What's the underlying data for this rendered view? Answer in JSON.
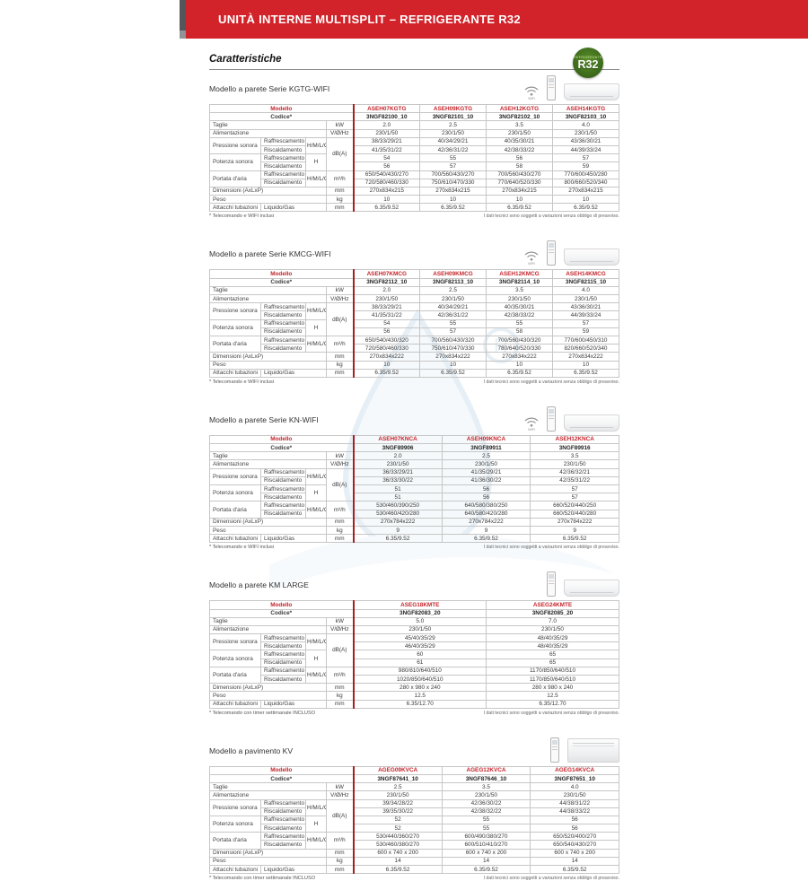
{
  "banner": {
    "title": "UNITÀ INTERNE MULTISPLIT – REFRIGERANTE R32"
  },
  "heading": "Caratteristiche",
  "badge": {
    "small": "REFRIGERANTE",
    "big": "R32"
  },
  "labels": {
    "modello": "Modello",
    "codice": "Codice*",
    "taglie": "Taglie",
    "alimentazione": "Alimentazione",
    "pressione": "Pressione sonora",
    "potenza": "Potenza sonora",
    "portata": "Portata d'aria",
    "raffrescamento": "Raffrescamento",
    "riscaldamento": "Riscaldamento",
    "hmlq": "H/M/L/Q",
    "h": "H",
    "dimensioni": "Dimensioni (AxLxP)",
    "peso": "Peso",
    "attacchi": "Attacchi tubazioni",
    "liquido_gas": "Liquido/Gas",
    "unit_kw": "kW",
    "unit_v": "V/Ø/Hz",
    "unit_dba": "dB(A)",
    "unit_m3h": "m³/h",
    "unit_mm": "mm",
    "unit_kg": "kg",
    "wifi_caption": "WIFI",
    "note_right": "I dati tecnici sono soggetti a variazioni senza obbligo di preavviso."
  },
  "sections": [
    {
      "id": "kgtg-wifi",
      "title": "Modello a parete Serie KGTG-WIFI",
      "icons": [
        "wifi",
        "remote",
        "wall-unit"
      ],
      "footnote": "* Telecomando e WIFI inclusi",
      "models": [
        "ASEH07KGTG",
        "ASEH09KGTG",
        "ASEH12KGTG",
        "ASEH14KGTG"
      ],
      "codes": [
        "3NGF82100_10",
        "3NGF82101_10",
        "3NGF82102_10",
        "3NGF82103_10"
      ],
      "taglie": [
        "2.0",
        "2.5",
        "3.5",
        "4.0"
      ],
      "alimentazione": [
        "230/1/50",
        "230/1/50",
        "230/1/50",
        "230/1/50"
      ],
      "pressione_raff": [
        "38/33/29/21",
        "40/34/29/21",
        "40/35/30/21",
        "43/36/30/21"
      ],
      "pressione_risc": [
        "41/35/31/22",
        "42/36/31/22",
        "42/38/33/22",
        "44/39/33/24"
      ],
      "potenza_raff": [
        "54",
        "55",
        "56",
        "57"
      ],
      "potenza_risc": [
        "56",
        "57",
        "58",
        "59"
      ],
      "portata_raff": [
        "650/540/430/270",
        "700/560/430/270",
        "700/560/430/270",
        "770/600/450/280"
      ],
      "portata_risc": [
        "720/580/460/330",
        "750/610/470/330",
        "770/640/520/330",
        "800/660/520/340"
      ],
      "dimensioni": [
        "270x834x215",
        "270x834x215",
        "270x834x215",
        "270x834x215"
      ],
      "peso": [
        "10",
        "10",
        "10",
        "10"
      ],
      "attacchi": [
        "6.35/9.52",
        "6.35/9.52",
        "6.35/9.52",
        "6.35/9.52"
      ]
    },
    {
      "id": "kmcg-wifi",
      "title": "Modello a parete Serie KMCG-WIFI",
      "icons": [
        "wifi",
        "remote",
        "wall-unit"
      ],
      "footnote": "* Telecomando e WIFI inclusi",
      "models": [
        "ASEH07KMCG",
        "ASEH09KMCG",
        "ASEH12KMCG",
        "ASEH14KMCG"
      ],
      "codes": [
        "3NGF82112_10",
        "3NGF82113_10",
        "3NGF82114_10",
        "3NGF82115_10"
      ],
      "taglie": [
        "2.0",
        "2.5",
        "3.5",
        "4.0"
      ],
      "alimentazione": [
        "230/1/50",
        "230/1/50",
        "230/1/50",
        "230/1/50"
      ],
      "pressione_raff": [
        "38/33/29/21",
        "40/34/29/21",
        "40/35/30/21",
        "43/36/30/21"
      ],
      "pressione_risc": [
        "41/35/31/22",
        "42/36/31/22",
        "42/38/33/22",
        "44/39/33/24"
      ],
      "potenza_raff": [
        "54",
        "55",
        "55",
        "57"
      ],
      "potenza_risc": [
        "56",
        "57",
        "58",
        "59"
      ],
      "portata_raff": [
        "650/540/430/320",
        "700/560/430/320",
        "700/560/430/320",
        "770/600/450/310"
      ],
      "portata_risc": [
        "720/580/460/330",
        "750/610/470/330",
        "780/640/520/330",
        "820/660/520/340"
      ],
      "dimensioni": [
        "270x834x222",
        "270x834x222",
        "270x834x222",
        "270x834x222"
      ],
      "peso": [
        "10",
        "10",
        "10",
        "10"
      ],
      "attacchi": [
        "6.35/9.52",
        "6.35/9.52",
        "6.35/9.52",
        "6.35/9.52"
      ]
    },
    {
      "id": "kn-wifi",
      "title": "Modello a parete Serie KN-WIFI",
      "icons": [
        "wifi",
        "remote",
        "wall-unit"
      ],
      "footnote": "* Telecomando e WIFI inclusi",
      "models": [
        "ASEH07KNCA",
        "ASEH09KNCA",
        "ASEH12KNCA"
      ],
      "codes": [
        "3NGF89906",
        "3NGF89911",
        "3NGF89916"
      ],
      "taglie": [
        "2.0",
        "2.5",
        "3.5"
      ],
      "alimentazione": [
        "230/1/50",
        "230/1/50",
        "230/1/50"
      ],
      "pressione_raff": [
        "36/33/29/21",
        "41/35/29/21",
        "42/36/32/21"
      ],
      "pressione_risc": [
        "36/33/30/22",
        "41/36/30/22",
        "42/35/31/22"
      ],
      "potenza_raff": [
        "51",
        "56",
        "57"
      ],
      "potenza_risc": [
        "51",
        "56",
        "57"
      ],
      "portata_raff": [
        "530/460/390/250",
        "640/580/380/250",
        "660/520/440/250"
      ],
      "portata_risc": [
        "530/460/420/280",
        "640/580/420/280",
        "660/520/440/280"
      ],
      "dimensioni": [
        "270x784x222",
        "270x784x222",
        "270x784x222"
      ],
      "peso": [
        "9",
        "9",
        "9"
      ],
      "attacchi": [
        "6.35/9.52",
        "6.35/9.52",
        "6.35/9.52"
      ]
    },
    {
      "id": "km-large",
      "title": "Modello a parete KM LARGE",
      "icons": [
        "remote",
        "wall-unit"
      ],
      "footnote": "* Telecomando con timer settimanale INCLUSO",
      "models": [
        "ASEG18KMTE",
        "ASEG24KMTE"
      ],
      "codes": [
        "3NGF82083_20",
        "3NGF82085_20"
      ],
      "taglie": [
        "5.0",
        "7.0"
      ],
      "alimentazione": [
        "230/1/50",
        "230/1/50"
      ],
      "pressione_raff": [
        "45/40/35/29",
        "48/40/35/29"
      ],
      "pressione_risc": [
        "46/40/35/29",
        "48/40/35/29"
      ],
      "potenza_raff": [
        "60",
        "65"
      ],
      "potenza_risc": [
        "61",
        "65"
      ],
      "portata_raff": [
        "980/810/640/510",
        "1170/850/640/510"
      ],
      "portata_risc": [
        "1020/850/640/510",
        "1170/850/640/510"
      ],
      "dimensioni": [
        "280 x 980 x 240",
        "280 x 980 x 240"
      ],
      "peso": [
        "12.5",
        "12.5"
      ],
      "attacchi": [
        "6.35/12.70",
        "6.35/12.70"
      ]
    },
    {
      "id": "kv",
      "title": "Modello a pavimento KV",
      "icons": [
        "remote",
        "floor-unit"
      ],
      "footnote": "* Telecomando con timer settimanale INCLUSO",
      "models": [
        "AGEG09KVCA",
        "AGEG12KVCA",
        "AGEG14KVCA"
      ],
      "codes": [
        "3NGF87641_10",
        "3NGF87646_10",
        "3NGF87651_10"
      ],
      "taglie": [
        "2.5",
        "3.5",
        "4.0"
      ],
      "alimentazione": [
        "230/1/50",
        "230/1/50",
        "230/1/50"
      ],
      "pressione_raff": [
        "39/34/28/22",
        "42/36/30/22",
        "44/38/31/22"
      ],
      "pressione_risc": [
        "39/35/30/22",
        "42/38/32/22",
        "44/38/33/22"
      ],
      "potenza_raff": [
        "52",
        "55",
        "56"
      ],
      "potenza_risc": [
        "52",
        "55",
        "56"
      ],
      "portata_raff": [
        "530/440/360/270",
        "600/490/380/270",
        "650/520/400/270"
      ],
      "portata_risc": [
        "530/460/380/270",
        "600/510/410/270",
        "650/540/430/270"
      ],
      "dimensioni": [
        "600 x 740 x 200",
        "600 x 740 x 200",
        "600 x 740 x 200"
      ],
      "peso": [
        "14",
        "14",
        "14"
      ],
      "attacchi": [
        "6.35/9.52",
        "6.35/9.52",
        "6.35/9.52"
      ]
    }
  ]
}
